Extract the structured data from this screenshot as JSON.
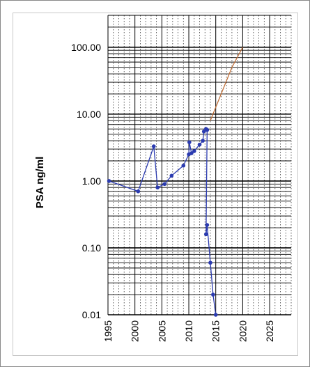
{
  "chart_data": {
    "type": "line",
    "title": "",
    "xlabel": "",
    "ylabel": "PSA ng/ml",
    "yscale": "log",
    "xlim": [
      1995,
      2029
    ],
    "ylim": [
      0.01,
      300
    ],
    "x_ticks": [
      "1995",
      "2000",
      "2005",
      "2010",
      "2015",
      "2020",
      "2025"
    ],
    "y_ticks": [
      "0.01",
      "0.10",
      "1.00",
      "10.00",
      "100.00"
    ],
    "grid": true,
    "series": [
      {
        "color": "#2b3bb0",
        "points": [
          [
            1995.2,
            1.0
          ],
          [
            2000.6,
            0.7
          ],
          [
            2003.5,
            3.3
          ],
          [
            2004.2,
            0.8
          ],
          [
            2005.5,
            0.9
          ],
          [
            2006.8,
            1.2
          ],
          [
            2009.0,
            1.7
          ],
          [
            2010.0,
            2.5
          ],
          [
            2010.1,
            3.8
          ],
          [
            2010.5,
            2.6
          ],
          [
            2011.0,
            2.8
          ],
          [
            2012.0,
            3.5
          ],
          [
            2012.6,
            4.0
          ],
          [
            2012.8,
            5.5
          ],
          [
            2013.2,
            6.0
          ],
          [
            2013.4,
            5.8
          ],
          [
            2013.2,
            0.16
          ],
          [
            2013.4,
            0.22
          ],
          [
            2014.0,
            0.06
          ],
          [
            2014.5,
            0.02
          ],
          [
            2015.0,
            0.01
          ]
        ]
      },
      {
        "color": "#c0703a",
        "points": [
          [
            2014.0,
            8.0
          ],
          [
            2016.0,
            20.0
          ],
          [
            2018.0,
            50.0
          ],
          [
            2020.0,
            100.0
          ]
        ]
      }
    ]
  }
}
